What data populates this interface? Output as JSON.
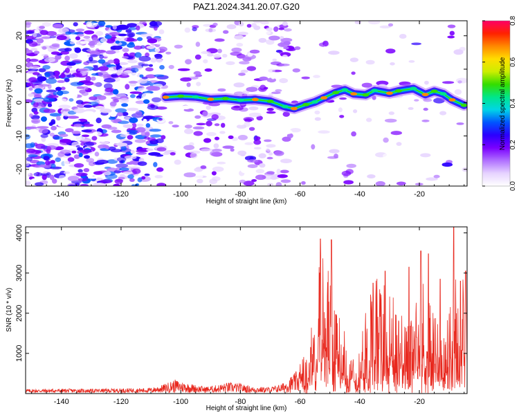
{
  "chart_data": [
    {
      "type": "heatmap",
      "title": "PAZ1.2024.341.20.07.G20",
      "xlabel": "Height of straight line (km)",
      "ylabel": "Frequency (Hz)",
      "xlim": [
        -152,
        -4
      ],
      "ylim": [
        -25,
        24.5
      ],
      "xticks": [
        -140,
        -120,
        -100,
        -80,
        -60,
        -40,
        -20
      ],
      "yticks": [
        -20,
        -10,
        0,
        10,
        20
      ],
      "colorbar": {
        "label": "Normalized spectral amplitude",
        "range": [
          0.0,
          0.8
        ],
        "ticks": [
          "0.0",
          "0.2",
          "0.4",
          "0.6",
          "0.8"
        ],
        "colors": [
          "#ffffff",
          "#e6d3ff",
          "#b070ff",
          "#7a00ff",
          "#2b00ff",
          "#0055ff",
          "#00d5e6",
          "#00e68a",
          "#33dd00",
          "#ccee00",
          "#ffdd00",
          "#ff8800",
          "#ff2200",
          "#ff0066"
        ]
      },
      "ridge": {
        "description": "dominant frequency track",
        "points": [
          {
            "x": -105,
            "y": 1.6
          },
          {
            "x": -100,
            "y": 1.9
          },
          {
            "x": -95,
            "y": 1.7
          },
          {
            "x": -90,
            "y": 1.0
          },
          {
            "x": -85,
            "y": 1.2
          },
          {
            "x": -80,
            "y": 0.7
          },
          {
            "x": -75,
            "y": 0.9
          },
          {
            "x": -70,
            "y": 0.4
          },
          {
            "x": -65,
            "y": -1.2
          },
          {
            "x": -62,
            "y": -1.8
          },
          {
            "x": -58,
            "y": -0.6
          },
          {
            "x": -55,
            "y": 0.2
          },
          {
            "x": -52,
            "y": 1.4
          },
          {
            "x": -48,
            "y": 3.0
          },
          {
            "x": -45,
            "y": 3.8
          },
          {
            "x": -42,
            "y": 2.6
          },
          {
            "x": -38,
            "y": 2.3
          },
          {
            "x": -35,
            "y": 3.6
          },
          {
            "x": -30,
            "y": 2.8
          },
          {
            "x": -27,
            "y": 3.5
          },
          {
            "x": -22,
            "y": 4.2
          },
          {
            "x": -18,
            "y": 2.4
          },
          {
            "x": -15,
            "y": 3.4
          },
          {
            "x": -12,
            "y": 2.6
          },
          {
            "x": -9,
            "y": 0.8
          },
          {
            "x": -5,
            "y": -0.8
          }
        ]
      }
    },
    {
      "type": "line",
      "xlabel": "Height of straight line (km)",
      "ylabel": "SNR (10 * v/v)",
      "xlim": [
        -152,
        -4
      ],
      "ylim": [
        0,
        4150
      ],
      "xticks": [
        -140,
        -120,
        -100,
        -80,
        -60,
        -40,
        -20
      ],
      "yticks": [
        1000,
        2000,
        3000,
        4000
      ],
      "color": "#e8281e",
      "envelope": [
        {
          "x": -152,
          "y": 90
        },
        {
          "x": -140,
          "y": 100
        },
        {
          "x": -130,
          "y": 95
        },
        {
          "x": -120,
          "y": 110
        },
        {
          "x": -110,
          "y": 120
        },
        {
          "x": -106,
          "y": 200
        },
        {
          "x": -102,
          "y": 330
        },
        {
          "x": -98,
          "y": 250
        },
        {
          "x": -92,
          "y": 150
        },
        {
          "x": -88,
          "y": 190
        },
        {
          "x": -84,
          "y": 260
        },
        {
          "x": -80,
          "y": 230
        },
        {
          "x": -76,
          "y": 150
        },
        {
          "x": -70,
          "y": 140
        },
        {
          "x": -66,
          "y": 230
        },
        {
          "x": -62,
          "y": 480
        },
        {
          "x": -59,
          "y": 720
        },
        {
          "x": -57,
          "y": 1000
        },
        {
          "x": -55,
          "y": 1700
        },
        {
          "x": -53,
          "y": 2900
        },
        {
          "x": -51,
          "y": 2500
        },
        {
          "x": -49.5,
          "y": 2600
        },
        {
          "x": -47,
          "y": 1500
        },
        {
          "x": -44,
          "y": 1050
        },
        {
          "x": -41,
          "y": 600
        },
        {
          "x": -38,
          "y": 1600
        },
        {
          "x": -36,
          "y": 2200
        },
        {
          "x": -33,
          "y": 2300
        },
        {
          "x": -30,
          "y": 2000
        },
        {
          "x": -28,
          "y": 1900
        },
        {
          "x": -26,
          "y": 1700
        },
        {
          "x": -22,
          "y": 1400
        },
        {
          "x": -20,
          "y": 2300
        },
        {
          "x": -18,
          "y": 2100
        },
        {
          "x": -15,
          "y": 1600
        },
        {
          "x": -12,
          "y": 1000
        },
        {
          "x": -10,
          "y": 1900
        },
        {
          "x": -8,
          "y": 2300
        },
        {
          "x": -6,
          "y": 2500
        },
        {
          "x": -4,
          "y": 2800
        }
      ],
      "peaks": [
        {
          "x": -53.2,
          "y": 3850
        },
        {
          "x": -49.5,
          "y": 3830
        },
        {
          "x": -35.5,
          "y": 2750
        },
        {
          "x": -31.5,
          "y": 3050
        },
        {
          "x": -23.5,
          "y": 3150
        },
        {
          "x": -19.5,
          "y": 3550
        },
        {
          "x": -17,
          "y": 3480
        },
        {
          "x": -13,
          "y": 2850
        },
        {
          "x": -8.5,
          "y": 4150
        },
        {
          "x": -6.2,
          "y": 2800
        },
        {
          "x": -4.5,
          "y": 3050
        }
      ]
    }
  ]
}
